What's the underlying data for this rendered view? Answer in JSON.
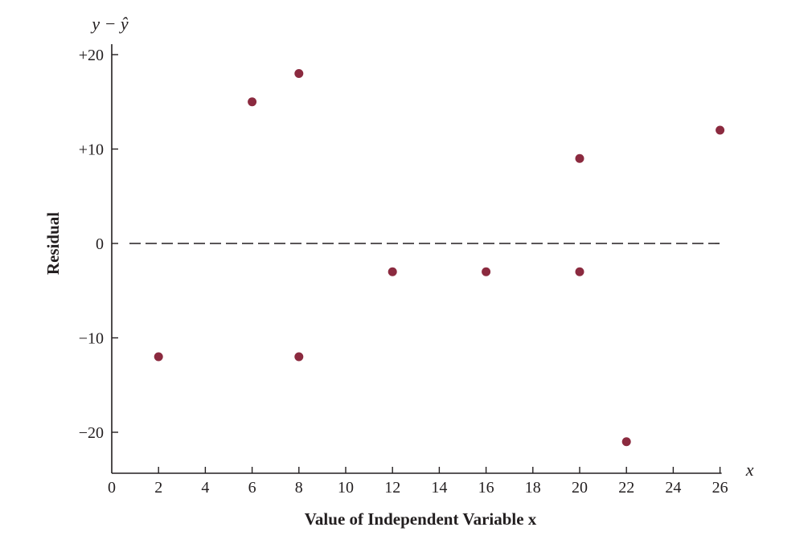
{
  "chart_data": {
    "type": "scatter",
    "title": "",
    "xlabel": "Value of Independent Variable x",
    "ylabel": "Residual",
    "y_axis_symbol": "y − ŷ",
    "x_axis_symbol": "x",
    "xlim": [
      0,
      26
    ],
    "ylim": [
      -24,
      20
    ],
    "x_ticks": [
      0,
      2,
      4,
      6,
      8,
      10,
      12,
      14,
      16,
      18,
      20,
      22,
      24,
      26
    ],
    "x_tick_labels": [
      "0",
      "2",
      "4",
      "6",
      "8",
      "10",
      "12",
      "14",
      "16",
      "18",
      "20",
      "22",
      "24",
      "26"
    ],
    "y_ticks": [
      20,
      10,
      0,
      -10,
      -20
    ],
    "y_tick_labels": [
      "+20",
      "+10",
      "0",
      "−10",
      "−20"
    ],
    "reference_line": {
      "y": 0,
      "style": "dashed"
    },
    "grid": false,
    "marker_color": "#8b2a3f",
    "points": [
      {
        "x": 2,
        "y": -12
      },
      {
        "x": 6,
        "y": 15
      },
      {
        "x": 8,
        "y": 18
      },
      {
        "x": 8,
        "y": -12
      },
      {
        "x": 12,
        "y": -3
      },
      {
        "x": 16,
        "y": -3
      },
      {
        "x": 20,
        "y": 9
      },
      {
        "x": 20,
        "y": -3
      },
      {
        "x": 22,
        "y": -21
      },
      {
        "x": 26,
        "y": 12
      }
    ]
  }
}
